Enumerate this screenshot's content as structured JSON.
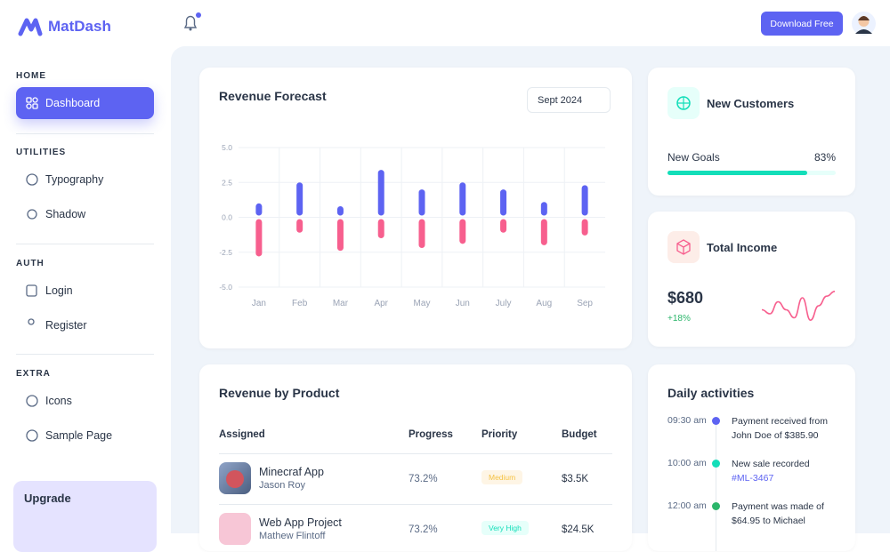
{
  "sidebar": {
    "brand": "MatDash",
    "sections": [
      {
        "title": "HOME",
        "items": [
          "Dashboard"
        ]
      },
      {
        "title": "UTILITIES",
        "items": [
          "Typography",
          "Shadow"
        ]
      },
      {
        "title": "AUTH",
        "items": [
          "Login",
          "Register"
        ]
      },
      {
        "title": "EXTRA",
        "items": [
          "Icons",
          "Sample Page"
        ]
      }
    ],
    "upgrade": "Upgrade"
  },
  "header": {
    "button": "Download Free"
  },
  "forecast_filter": "Sept 2024",
  "chart_data": {
    "type": "bar",
    "title": "Revenue Forecast",
    "categories": [
      "Jan",
      "Feb",
      "Mar",
      "Apr",
      "May",
      "Jun",
      "July",
      "Aug",
      "Sep"
    ],
    "series": [
      {
        "color": "#5d63f2",
        "values": [
          1.0,
          2.5,
          0.8,
          3.4,
          2.0,
          2.5,
          2.0,
          1.1,
          2.3
        ]
      },
      {
        "color": "#f75f8e",
        "values": [
          -2.8,
          -1.1,
          -2.4,
          -1.5,
          -2.2,
          -1.9,
          -1.1,
          -2.0,
          -1.3
        ]
      }
    ],
    "ylim": [
      -5,
      5
    ],
    "yticks": [
      {
        "value": 5,
        "label": "5.0"
      },
      {
        "value": 2.5,
        "label": "2.5"
      },
      {
        "value": 0,
        "label": "0.0"
      },
      {
        "value": -2.5,
        "label": "-2.5"
      },
      {
        "value": -5,
        "label": "-5.0"
      }
    ],
    "grid": true
  },
  "new_customers": {
    "title": "New Customers",
    "goal_label": "New Goals",
    "goal": 83,
    "goal_value_label": "83%",
    "color": "#13deb9"
  },
  "total_income": {
    "title": "Total Income",
    "amount": "$680",
    "change": "+18%",
    "sparkline": {
      "color": "#f75f8e",
      "values": [
        1.5,
        1.0,
        2.5,
        1.5,
        0.5,
        3.0,
        0.2,
        2.0,
        3.2,
        3.8
      ]
    }
  },
  "revenue_by_product": {
    "title": "Revenue by Product",
    "columns": [
      "Assigned",
      "Progress",
      "Priority",
      "Budget"
    ],
    "rows": [
      {
        "name": "Minecraf App",
        "assignee": "Jason Roy",
        "progress": "73.2%",
        "priority": "Medium",
        "budget": "$3.5K"
      },
      {
        "name": "Web App Project",
        "assignee": "Mathew Flintoff",
        "progress": "73.2%",
        "priority": "Very High",
        "budget": "$24.5K"
      }
    ]
  },
  "daily_activities": {
    "title": "Daily activities",
    "items": [
      {
        "time": "09:30 am",
        "text": "Payment received from John Doe of $385.90",
        "color": "#5d63f2"
      },
      {
        "time": "10:00 am",
        "text": "New sale recorded",
        "link": "#ML-3467",
        "color": "#13deb9"
      },
      {
        "time": "12:00 am",
        "text": "Payment was made of $64.95 to Michael",
        "color": "#2cb66b"
      }
    ]
  }
}
